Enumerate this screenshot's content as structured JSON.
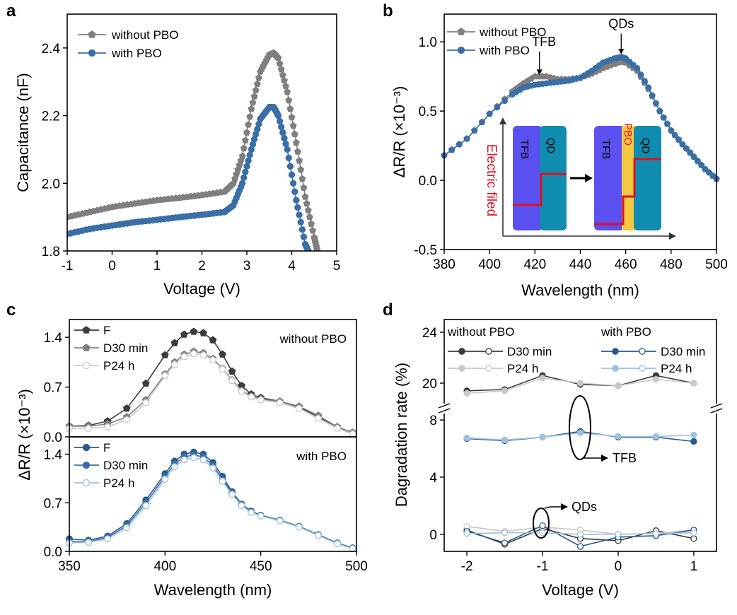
{
  "panels": {
    "a": "a",
    "b": "b",
    "c": "c",
    "d": "d"
  },
  "colors": {
    "without": "#7f7f7f",
    "with": "#3a6fa6",
    "darkgray": "#3c3c3c",
    "lightgray": "#c8c8c8",
    "darkblue": "#2a5a8c",
    "lightblue": "#9ec1de",
    "inset_tfb": "#5b50f0",
    "inset_qd": "#108cb0",
    "inset_pbo": "#f5c842",
    "inset_red": "#e01020"
  },
  "chart_data": [
    {
      "id": "a",
      "type": "scatter",
      "xlabel": "Voltage (V)",
      "ylabel": "Capacitance (nF)",
      "xlim": [
        -1,
        5
      ],
      "ylim": [
        1.8,
        2.5
      ],
      "xticks": [
        -1,
        0,
        1,
        2,
        3,
        4,
        5
      ],
      "yticks": [
        1.8,
        2.0,
        2.2,
        2.4
      ],
      "ytick_labels": [
        "1.8",
        "2.0",
        "2.2",
        "2.4"
      ],
      "legend_placement": "top-left",
      "series": [
        {
          "name": "without PBO",
          "color_key": "without",
          "x": [
            -1,
            -0.5,
            0,
            0.5,
            1,
            1.5,
            2,
            2.5,
            2.7,
            2.9,
            3.1,
            3.3,
            3.5,
            3.6,
            3.7,
            3.9,
            4.1,
            4.3,
            4.5,
            4.57
          ],
          "y": [
            1.9,
            1.915,
            1.93,
            1.94,
            1.95,
            1.957,
            1.965,
            1.975,
            2.0,
            2.08,
            2.22,
            2.33,
            2.38,
            2.385,
            2.37,
            2.27,
            2.12,
            1.96,
            1.84,
            1.8
          ]
        },
        {
          "name": "with PBO",
          "color_key": "with",
          "x": [
            -1,
            -0.5,
            0,
            0.5,
            1,
            1.5,
            2,
            2.5,
            2.7,
            2.9,
            3.1,
            3.3,
            3.5,
            3.6,
            3.7,
            3.9,
            4.1,
            4.3,
            4.37
          ],
          "y": [
            1.85,
            1.865,
            1.875,
            1.885,
            1.892,
            1.9,
            1.907,
            1.915,
            1.935,
            2.0,
            2.1,
            2.19,
            2.225,
            2.225,
            2.2,
            2.1,
            1.95,
            1.82,
            1.8
          ]
        }
      ]
    },
    {
      "id": "b",
      "type": "line",
      "xlabel": "Wavelength (nm)",
      "ylabel": "ΔR/R (×10⁻³)",
      "xlim": [
        380,
        500
      ],
      "ylim": [
        -0.5,
        1.2
      ],
      "xticks": [
        380,
        400,
        420,
        440,
        460,
        480,
        500
      ],
      "yticks": [
        -0.5,
        0.0,
        0.5,
        1.0
      ],
      "ytick_labels": [
        "-0.5",
        "0.0",
        "0.5",
        "1.0"
      ],
      "legend_placement": "top-left",
      "annotations": [
        "TFB",
        "QDs"
      ],
      "series": [
        {
          "name": "without PBO",
          "color_key": "without",
          "x": [
            380,
            390,
            400,
            410,
            415,
            420,
            425,
            430,
            435,
            440,
            445,
            450,
            455,
            458,
            460,
            465,
            470,
            475,
            480,
            485,
            490,
            495,
            500
          ],
          "y": [
            0.18,
            0.3,
            0.48,
            0.64,
            0.7,
            0.75,
            0.75,
            0.73,
            0.73,
            0.74,
            0.77,
            0.81,
            0.84,
            0.86,
            0.85,
            0.79,
            0.66,
            0.5,
            0.36,
            0.26,
            0.17,
            0.08,
            0.01
          ]
        },
        {
          "name": "with PBO",
          "color_key": "with",
          "x": [
            380,
            390,
            400,
            410,
            415,
            420,
            425,
            430,
            435,
            440,
            445,
            450,
            455,
            458,
            460,
            465,
            470,
            475,
            480,
            485,
            490,
            495,
            500
          ],
          "y": [
            0.18,
            0.3,
            0.48,
            0.62,
            0.67,
            0.69,
            0.7,
            0.71,
            0.72,
            0.74,
            0.79,
            0.85,
            0.88,
            0.89,
            0.88,
            0.81,
            0.67,
            0.5,
            0.36,
            0.26,
            0.17,
            0.08,
            0.01
          ]
        }
      ],
      "inset": {
        "labels": {
          "tfb": "TFB",
          "qd": "QD",
          "pbo": "PBO",
          "field": "Electric filed"
        }
      }
    },
    {
      "id": "c",
      "type": "line",
      "xlabel": "Wavelength (nm)",
      "ylabel": "ΔR/R (×10⁻³)",
      "xlim": [
        350,
        500
      ],
      "xticks": [
        350,
        400,
        450,
        500
      ],
      "subplots": [
        {
          "label": "without PBO",
          "ylim": [
            0,
            1.65
          ],
          "yticks": [
            0.0,
            0.7,
            1.4
          ],
          "ytick_labels": [
            "0.0",
            "0.7",
            "1.4"
          ],
          "series": [
            {
              "name": "F",
              "color_key": "darkgray",
              "x": [
                350,
                360,
                370,
                380,
                390,
                400,
                405,
                410,
                415,
                420,
                425,
                430,
                435,
                440,
                445,
                450,
                460,
                470,
                480,
                490,
                498
              ],
              "y": [
                0.15,
                0.16,
                0.22,
                0.4,
                0.75,
                1.15,
                1.32,
                1.44,
                1.48,
                1.46,
                1.36,
                1.16,
                0.92,
                0.72,
                0.6,
                0.55,
                0.5,
                0.42,
                0.28,
                0.14,
                0.06
              ]
            },
            {
              "name": "D30 min",
              "color_key": "without",
              "x": [
                350,
                360,
                370,
                380,
                390,
                400,
                405,
                410,
                415,
                420,
                425,
                430,
                435,
                440,
                445,
                450,
                460,
                470,
                480,
                490,
                498
              ],
              "y": [
                0.15,
                0.15,
                0.18,
                0.28,
                0.52,
                0.88,
                1.05,
                1.16,
                1.2,
                1.18,
                1.1,
                0.96,
                0.8,
                0.65,
                0.57,
                0.53,
                0.5,
                0.43,
                0.3,
                0.14,
                0.06
              ]
            },
            {
              "name": "P24 h",
              "color_key": "lightgray",
              "x": [
                350,
                360,
                370,
                380,
                390,
                400,
                405,
                410,
                415,
                420,
                425,
                430,
                435,
                440,
                445,
                450,
                460,
                470,
                480,
                490,
                498
              ],
              "y": [
                0.12,
                0.12,
                0.14,
                0.24,
                0.48,
                0.86,
                1.02,
                1.13,
                1.17,
                1.15,
                1.08,
                0.95,
                0.79,
                0.64,
                0.56,
                0.52,
                0.48,
                0.4,
                0.26,
                0.12,
                0.04
              ]
            }
          ]
        },
        {
          "label": "with PBO",
          "ylim": [
            0,
            1.65
          ],
          "yticks": [
            0.0,
            0.7,
            1.4
          ],
          "ytick_labels": [
            "0.0",
            "0.7",
            "1.4"
          ],
          "series": [
            {
              "name": "F",
              "color_key": "darkblue",
              "x": [
                350,
                360,
                370,
                380,
                390,
                400,
                405,
                410,
                415,
                420,
                425,
                430,
                435,
                440,
                445,
                450,
                460,
                470,
                480,
                490,
                498
              ],
              "y": [
                0.18,
                0.16,
                0.22,
                0.4,
                0.74,
                1.12,
                1.3,
                1.4,
                1.43,
                1.4,
                1.28,
                1.08,
                0.86,
                0.68,
                0.58,
                0.52,
                0.45,
                0.36,
                0.24,
                0.12,
                0.05
              ]
            },
            {
              "name": "D30 min",
              "color_key": "with",
              "x": [
                350,
                360,
                370,
                380,
                390,
                400,
                405,
                410,
                415,
                420,
                425,
                430,
                435,
                440,
                445,
                450,
                460,
                470,
                480,
                490,
                498
              ],
              "y": [
                0.14,
                0.14,
                0.2,
                0.37,
                0.7,
                1.08,
                1.26,
                1.36,
                1.39,
                1.36,
                1.24,
                1.04,
                0.84,
                0.67,
                0.57,
                0.52,
                0.45,
                0.36,
                0.24,
                0.12,
                0.05
              ]
            },
            {
              "name": "P24 h",
              "color_key": "lightblue",
              "x": [
                350,
                360,
                370,
                380,
                390,
                400,
                405,
                410,
                415,
                420,
                425,
                430,
                435,
                440,
                445,
                450,
                460,
                470,
                480,
                490,
                498
              ],
              "y": [
                0.12,
                0.13,
                0.18,
                0.34,
                0.66,
                1.04,
                1.22,
                1.32,
                1.35,
                1.32,
                1.2,
                1.01,
                0.82,
                0.66,
                0.56,
                0.51,
                0.44,
                0.35,
                0.23,
                0.11,
                0.04
              ]
            }
          ]
        }
      ]
    },
    {
      "id": "d",
      "type": "line",
      "xlabel": "Voltage (V)",
      "ylabel": "Dagradation rate (%)",
      "xlim": [
        -2.3,
        1.3
      ],
      "xticks": [
        -2,
        -1,
        0,
        1
      ],
      "broken_y_axis": {
        "upper_ylim": [
          18,
          25
        ],
        "upper_yticks": [
          20,
          24
        ],
        "lower_ylim": [
          -1.2,
          8.8
        ],
        "lower_yticks": [
          0,
          4,
          8
        ]
      },
      "annotations": [
        "TFB",
        "QDs"
      ],
      "legend_groups": [
        "without PBO",
        "with PBO"
      ],
      "x": [
        -2,
        -1.5,
        -1,
        -0.5,
        0,
        0.5,
        1
      ],
      "series": [
        {
          "name": "D30 min",
          "group": "without PBO",
          "color_key": "darkgray",
          "filled": true,
          "layer": "TFB",
          "y": [
            19.4,
            19.5,
            20.6,
            19.9,
            19.8,
            20.6,
            20.0
          ]
        },
        {
          "name": "P24 h",
          "group": "without PBO",
          "color_key": "lightgray",
          "filled": true,
          "layer": "TFB",
          "y": [
            19.2,
            19.4,
            20.4,
            20.0,
            19.8,
            20.3,
            20.0
          ]
        },
        {
          "name": "D30 min",
          "group": "with PBO",
          "color_key": "darkblue",
          "filled": true,
          "layer": "TFB",
          "y": [
            6.7,
            6.55,
            6.8,
            7.2,
            6.8,
            6.8,
            6.5
          ]
        },
        {
          "name": "P24 h",
          "group": "with PBO",
          "color_key": "lightblue",
          "filled": true,
          "layer": "TFB",
          "y": [
            6.75,
            6.6,
            6.8,
            7.1,
            6.85,
            6.85,
            6.95
          ]
        },
        {
          "name": "D30 min",
          "group": "without PBO",
          "color_key": "darkgray",
          "filled": false,
          "layer": "QDs",
          "y": [
            0.3,
            -0.7,
            0.4,
            -0.3,
            -0.45,
            0.25,
            -0.3
          ]
        },
        {
          "name": "P24 h",
          "group": "without PBO",
          "color_key": "lightgray",
          "filled": false,
          "layer": "QDs",
          "y": [
            0.55,
            0.2,
            0.5,
            0.3,
            0.0,
            0.05,
            0.3
          ]
        },
        {
          "name": "D30 min",
          "group": "with PBO",
          "color_key": "darkblue",
          "filled": false,
          "layer": "QDs",
          "y": [
            0.2,
            -0.6,
            0.6,
            -0.85,
            -0.2,
            -0.1,
            0.3
          ]
        },
        {
          "name": "P24 h",
          "group": "with PBO",
          "color_key": "lightblue",
          "filled": false,
          "layer": "QDs",
          "y": [
            0.05,
            0.1,
            0.1,
            0.0,
            0.0,
            0.05,
            0.1
          ]
        }
      ]
    }
  ]
}
